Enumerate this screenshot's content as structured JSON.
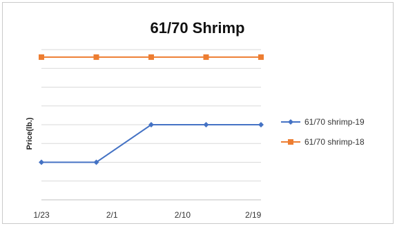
{
  "chart_data": {
    "type": "line",
    "title": "61/70 Shrimp",
    "xlabel": "",
    "ylabel": "Price(lb.)",
    "x_ticks": [
      "1/23",
      "2/1",
      "2/10",
      "2/19"
    ],
    "ylim": [
      0,
      8
    ],
    "grid": true,
    "legend_position": "right",
    "series": [
      {
        "name": "61/70 shrimp-19",
        "color": "#4472C4",
        "marker": "diamond",
        "x": [
          "1/23",
          "1/30",
          "2/6",
          "2/13",
          "2/20"
        ],
        "values": [
          2,
          2,
          4,
          4,
          4
        ]
      },
      {
        "name": "61/70 shrimp-18",
        "color": "#ED7D31",
        "marker": "square",
        "x": [
          "1/23",
          "1/30",
          "2/6",
          "2/13",
          "2/20"
        ],
        "values": [
          7.6,
          7.6,
          7.6,
          7.6,
          7.6
        ]
      }
    ]
  }
}
